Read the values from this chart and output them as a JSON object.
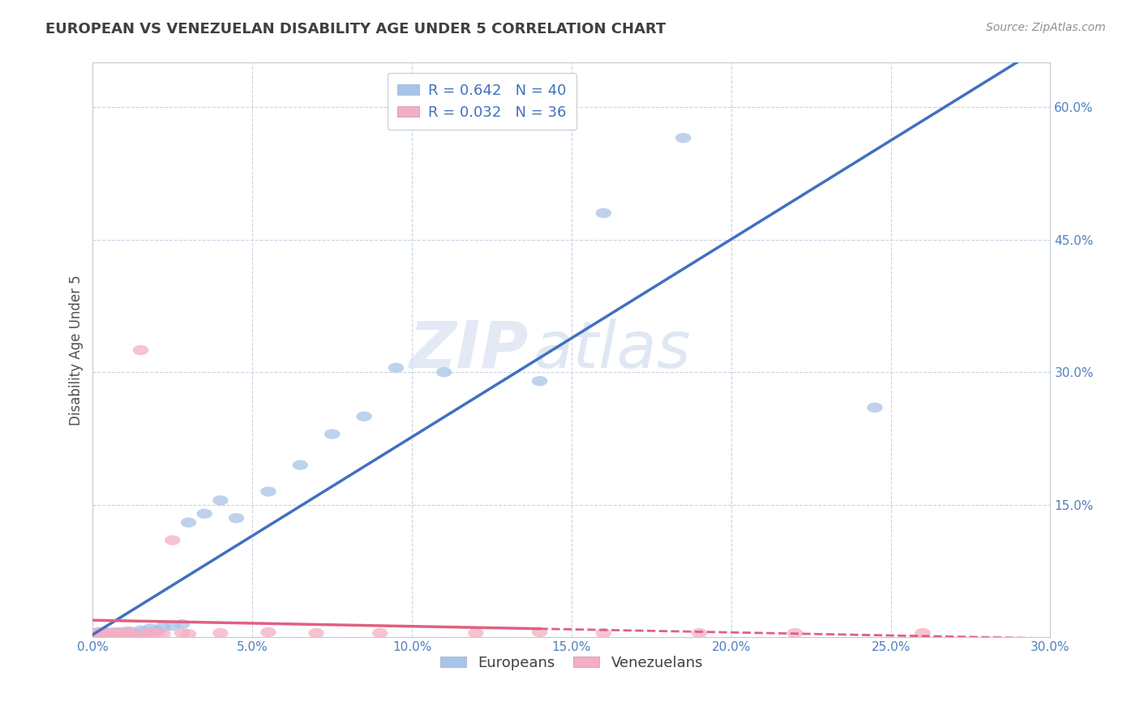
{
  "title": "EUROPEAN VS VENEZUELAN DISABILITY AGE UNDER 5 CORRELATION CHART",
  "source": "Source: ZipAtlas.com",
  "ylabel": "Disability Age Under 5",
  "xlim": [
    0.0,
    0.3
  ],
  "ylim": [
    0.0,
    0.65
  ],
  "xticks": [
    0.0,
    0.05,
    0.1,
    0.15,
    0.2,
    0.25,
    0.3
  ],
  "yticks": [
    0.0,
    0.15,
    0.3,
    0.45,
    0.6
  ],
  "xtick_labels": [
    "0.0%",
    "5.0%",
    "10.0%",
    "15.0%",
    "20.0%",
    "25.0%",
    "30.0%"
  ],
  "ytick_labels": [
    "",
    "15.0%",
    "30.0%",
    "45.0%",
    "60.0%"
  ],
  "legend_top": [
    "R = 0.642   N = 40",
    "R = 0.032   N = 36"
  ],
  "legend_bottom": [
    "Europeans",
    "Venezuelans"
  ],
  "european_color": "#a8c4e8",
  "venezuelan_color": "#f4afc4",
  "european_line_color": "#4070c0",
  "venezuelan_line_color": "#e06080",
  "watermark_zip": "ZIP",
  "watermark_atlas": "atlas",
  "background_color": "#ffffff",
  "grid_color": "#c8d4e4",
  "eu_patch_color": "#a8c4e8",
  "ve_patch_color": "#f4afc4",
  "europeans_x": [
    0.001,
    0.002,
    0.002,
    0.003,
    0.003,
    0.004,
    0.004,
    0.005,
    0.005,
    0.006,
    0.006,
    0.007,
    0.007,
    0.008,
    0.009,
    0.01,
    0.011,
    0.012,
    0.013,
    0.015,
    0.016,
    0.018,
    0.02,
    0.022,
    0.025,
    0.028,
    0.03,
    0.035,
    0.04,
    0.045,
    0.055,
    0.065,
    0.075,
    0.085,
    0.095,
    0.11,
    0.14,
    0.16,
    0.185,
    0.245
  ],
  "europeans_y": [
    0.005,
    0.004,
    0.006,
    0.005,
    0.004,
    0.004,
    0.006,
    0.005,
    0.003,
    0.005,
    0.004,
    0.006,
    0.004,
    0.005,
    0.006,
    0.005,
    0.007,
    0.006,
    0.005,
    0.008,
    0.006,
    0.01,
    0.008,
    0.012,
    0.013,
    0.015,
    0.13,
    0.14,
    0.155,
    0.135,
    0.165,
    0.195,
    0.23,
    0.25,
    0.305,
    0.3,
    0.29,
    0.48,
    0.565,
    0.26
  ],
  "venezuelans_x": [
    0.001,
    0.001,
    0.002,
    0.002,
    0.003,
    0.003,
    0.004,
    0.004,
    0.005,
    0.005,
    0.006,
    0.007,
    0.008,
    0.009,
    0.01,
    0.011,
    0.012,
    0.013,
    0.015,
    0.017,
    0.018,
    0.02,
    0.022,
    0.025,
    0.028,
    0.03,
    0.04,
    0.055,
    0.07,
    0.09,
    0.12,
    0.14,
    0.16,
    0.19,
    0.22,
    0.26
  ],
  "venezuelans_y": [
    0.003,
    0.005,
    0.004,
    0.006,
    0.004,
    0.005,
    0.003,
    0.005,
    0.004,
    0.003,
    0.005,
    0.004,
    0.003,
    0.005,
    0.004,
    0.006,
    0.005,
    0.003,
    0.325,
    0.005,
    0.004,
    0.005,
    0.004,
    0.11,
    0.005,
    0.004,
    0.005,
    0.006,
    0.005,
    0.005,
    0.005,
    0.006,
    0.005,
    0.005,
    0.005,
    0.005
  ],
  "ve_line_x_solid_end": 0.14,
  "ve_line_x_dashed_start": 0.14
}
